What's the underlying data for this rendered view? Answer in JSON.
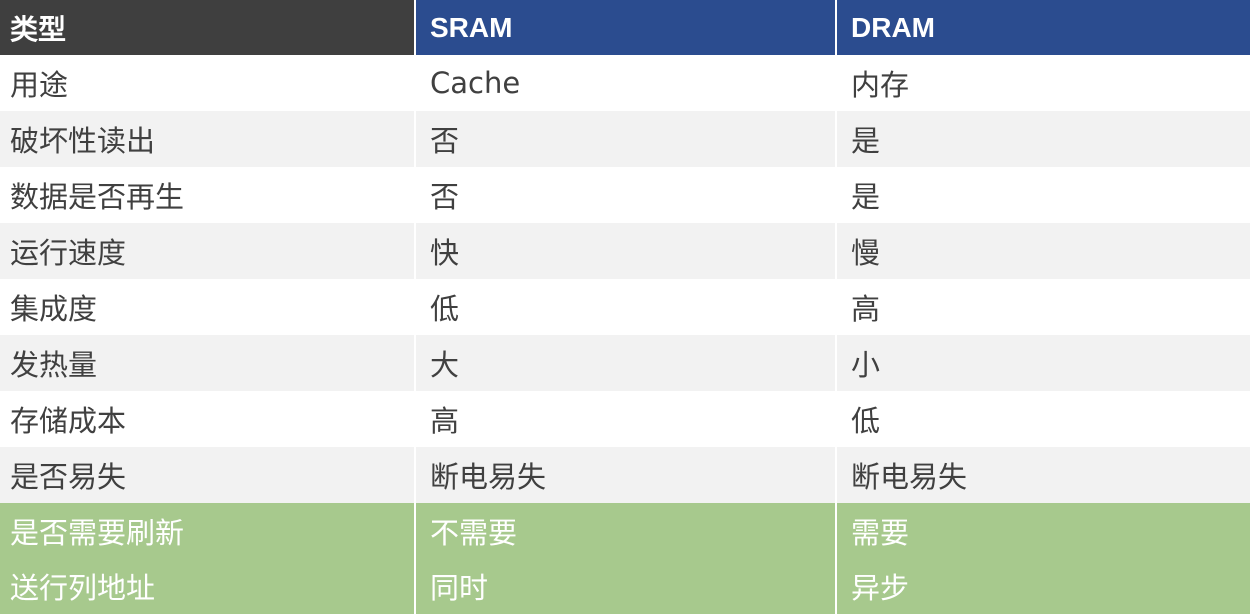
{
  "header": [
    "类型",
    "SRAM",
    "DRAM"
  ],
  "rows": [
    {
      "cells": [
        "用途",
        "Cache",
        "内存"
      ],
      "style": "white"
    },
    {
      "cells": [
        "破坏性读出",
        "否",
        "是"
      ],
      "style": "gray"
    },
    {
      "cells": [
        "数据是否再生",
        "否",
        "是"
      ],
      "style": "white"
    },
    {
      "cells": [
        "运行速度",
        "快",
        "慢"
      ],
      "style": "gray"
    },
    {
      "cells": [
        "集成度",
        "低",
        "高"
      ],
      "style": "white"
    },
    {
      "cells": [
        "发热量",
        "大",
        "小"
      ],
      "style": "gray"
    },
    {
      "cells": [
        "存储成本",
        "高",
        "低"
      ],
      "style": "white"
    },
    {
      "cells": [
        "是否易失",
        "断电易失",
        "断电易失"
      ],
      "style": "gray"
    },
    {
      "cells": [
        "是否需要刷新",
        "不需要",
        "需要"
      ],
      "style": "green"
    },
    {
      "cells": [
        "送行列地址",
        "同时",
        "异步"
      ],
      "style": "green"
    }
  ],
  "colors": {
    "header_label": "#3f3f3f",
    "header_col": "#2b4c8f",
    "stripe": "#f2f2f2",
    "highlight": "#a7c98d"
  }
}
